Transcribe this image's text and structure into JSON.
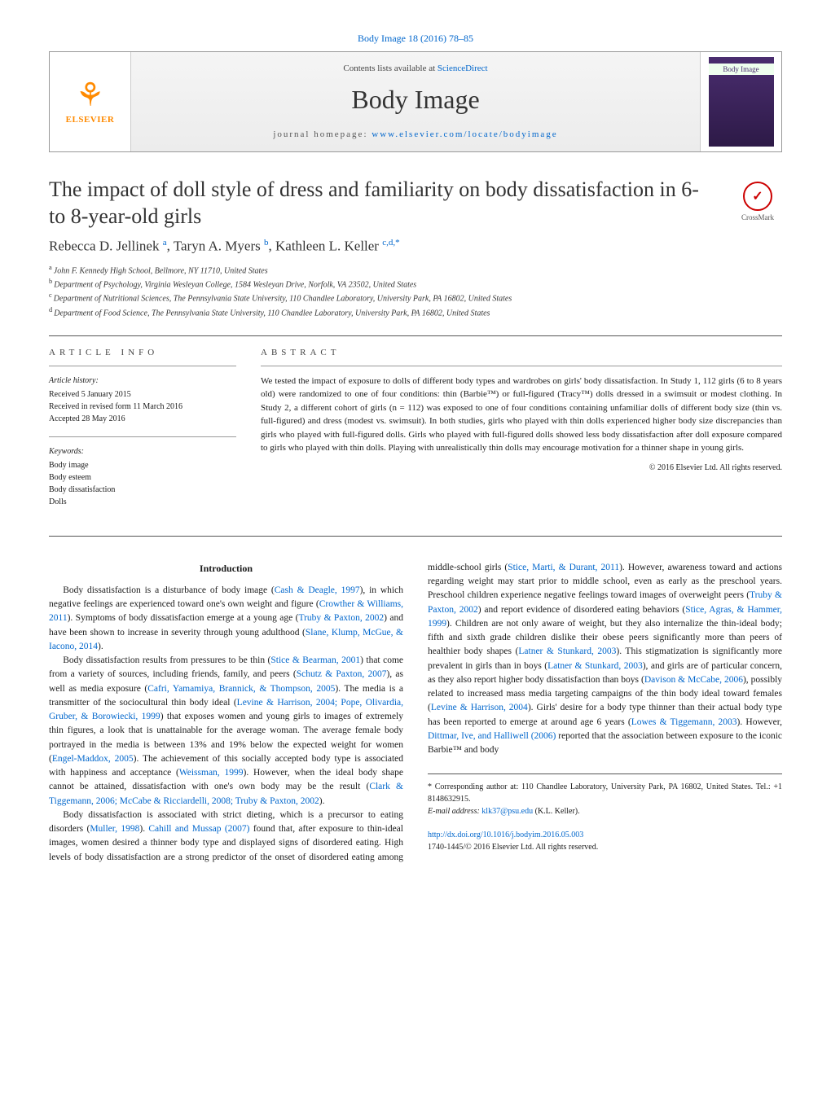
{
  "journal": {
    "citation": "Body Image 18 (2016) 78–85",
    "contents_prefix": "Contents lists available at ",
    "contents_link": "ScienceDirect",
    "name": "Body Image",
    "homepage_prefix": "journal homepage: ",
    "homepage_url": "www.elsevier.com/locate/bodyimage",
    "publisher_label": "ELSEVIER",
    "cover_label": "Body Image"
  },
  "crossmark": {
    "label": "CrossMark",
    "glyph": "✓"
  },
  "article": {
    "title": "The impact of doll style of dress and familiarity on body dissatisfaction in 6- to 8-year-old girls",
    "authors_html": [
      {
        "name": "Rebecca D. Jellinek",
        "sup": "a"
      },
      {
        "name": "Taryn A. Myers",
        "sup": "b"
      },
      {
        "name": "Kathleen L. Keller",
        "sup": "c,d,*"
      }
    ],
    "affiliations": [
      "John F. Kennedy High School, Bellmore, NY 11710, United States",
      "Department of Psychology, Virginia Wesleyan College, 1584 Wesleyan Drive, Norfolk, VA 23502, United States",
      "Department of Nutritional Sciences, The Pennsylvania State University, 110 Chandlee Laboratory, University Park, PA 16802, United States",
      "Department of Food Science, The Pennsylvania State University, 110 Chandlee Laboratory, University Park, PA 16802, United States"
    ],
    "affil_markers": [
      "a",
      "b",
      "c",
      "d"
    ]
  },
  "info": {
    "section_label": "article info",
    "history_label": "Article history:",
    "history": [
      "Received 5 January 2015",
      "Received in revised form 11 March 2016",
      "Accepted 28 May 2016"
    ],
    "keywords_label": "Keywords:",
    "keywords": [
      "Body image",
      "Body esteem",
      "Body dissatisfaction",
      "Dolls"
    ]
  },
  "abstract": {
    "section_label": "abstract",
    "text": "We tested the impact of exposure to dolls of different body types and wardrobes on girls' body dissatisfaction. In Study 1, 112 girls (6 to 8 years old) were randomized to one of four conditions: thin (Barbie™) or full-figured (Tracy™) dolls dressed in a swimsuit or modest clothing. In Study 2, a different cohort of girls (n = 112) was exposed to one of four conditions containing unfamiliar dolls of different body size (thin vs. full-figured) and dress (modest vs. swimsuit). In both studies, girls who played with thin dolls experienced higher body size discrepancies than girls who played with full-figured dolls. Girls who played with full-figured dolls showed less body dissatisfaction after doll exposure compared to girls who played with thin dolls. Playing with unrealistically thin dolls may encourage motivation for a thinner shape in young girls.",
    "copyright": "© 2016 Elsevier Ltd. All rights reserved."
  },
  "body": {
    "intro_heading": "Introduction",
    "paragraphs": [
      {
        "text": "Body dissatisfaction is a disturbance of body image (",
        "cites": [
          "Cash & Deagle, 1997"
        ],
        "tail": "), in which negative feelings are experienced toward one's own weight and figure (",
        "cites2": [
          "Crowther & Williams, 2011"
        ],
        "tail2": "). Symptoms of body dissatisfaction emerge at a young age (",
        "cites3": [
          "Truby & Paxton, 2002"
        ],
        "tail3": ") and have been shown to increase in severity through young adulthood (",
        "cites4": [
          "Slane, Klump, McGue, & Iacono, 2014"
        ],
        "tail4": ")."
      },
      {
        "text": "Body dissatisfaction results from pressures to be thin (",
        "cites": [
          "Stice & Bearman, 2001"
        ],
        "tail": ") that come from a variety of sources, including friends, family, and peers (",
        "cites2": [
          "Schutz & Paxton, 2007"
        ],
        "tail2": "), as well as media exposure (",
        "cites3": [
          "Cafri, Yamamiya, Brannick, & Thompson, 2005"
        ],
        "tail3": "). The media is a transmitter of the sociocultural thin body ideal (",
        "cites4": [
          "Levine & Harrison, 2004; Pope, Olivardia, Gruber, & Borowiecki, 1999"
        ],
        "tail4": ") that exposes women and young girls to images of extremely thin figures, a look that is unattainable for the average woman. The average female body portrayed in the media is between 13% and 19% below the expected weight for women (",
        "cites5": [
          "Engel-Maddox, 2005"
        ],
        "tail5": "). The achievement of this socially accepted body type is associated with happiness and acceptance (",
        "cites6": [
          "Weissman, 1999"
        ],
        "tail6": "). However, when the ideal body shape cannot be attained, dissatisfaction with one's own body may be the result (",
        "cites7": [
          "Clark & Tiggemann, 2006; McCabe & Ricciardelli, 2008; Truby & Paxton, 2002"
        ],
        "tail7": ")."
      },
      {
        "text": "Body dissatisfaction is associated with strict dieting, which is a precursor to eating disorders (",
        "cites": [
          "Muller, 1998"
        ],
        "tail": "). ",
        "cites2": [
          "Cahill and Mussap (2007)"
        ],
        "tail2": " found that, after exposure to thin-ideal images, women desired a thinner body type and displayed signs of disordered eating. High levels of body dissatisfaction are a strong predictor of the onset of disordered eating among middle-school girls (",
        "cites3": [
          "Stice, Marti, & Durant, 2011"
        ],
        "tail3": "). However, awareness toward and actions regarding weight may start prior to middle school, even as early as the preschool years. Preschool children experience negative feelings toward images of overweight peers (",
        "cites4": [
          "Truby & Paxton, 2002"
        ],
        "tail4": ") and report evidence of disordered eating behaviors (",
        "cites5": [
          "Stice, Agras, & Hammer, 1999"
        ],
        "tail5": "). Children are not only aware of weight, but they also internalize the thin-ideal body; fifth and sixth grade children dislike their obese peers significantly more than peers of healthier body shapes (",
        "cites6": [
          "Latner & Stunkard, 2003"
        ],
        "tail6": "). This stigmatization is significantly more prevalent in girls than in boys (",
        "cites7": [
          "Latner & Stunkard, 2003"
        ],
        "tail7": "), and girls are of particular concern, as they also report higher body dissatisfaction than boys (",
        "cites8": [
          "Davison & McCabe, 2006"
        ],
        "tail8": "), possibly related to increased mass media targeting campaigns of the thin body ideal toward females (",
        "cites9": [
          "Levine & Harrison, 2004"
        ],
        "tail9": "). Girls' desire for a body type thinner than their actual body type has been reported to emerge at around age 6 years (",
        "cites10": [
          "Lowes & Tiggemann, 2003"
        ],
        "tail10": "). However, ",
        "cites11": [
          "Dittmar, Ive, and Halliwell (2006)"
        ],
        "tail11": " reported that the association between exposure to the iconic Barbie™ and body"
      }
    ]
  },
  "footer": {
    "corr_label": "* Corresponding author at: 110 Chandlee Laboratory, University Park, PA 16802, United States. Tel.: +1 8148632915.",
    "email_label": "E-mail address: ",
    "email": "klk37@psu.edu",
    "email_tail": " (K.L. Keller).",
    "doi": "http://dx.doi.org/10.1016/j.bodyim.2016.05.003",
    "issn_line": "1740-1445/© 2016 Elsevier Ltd. All rights reserved."
  },
  "colors": {
    "link": "#0066cc",
    "elsevier": "#ff8a00",
    "text": "#1a1a1a",
    "rule": "#555555"
  }
}
